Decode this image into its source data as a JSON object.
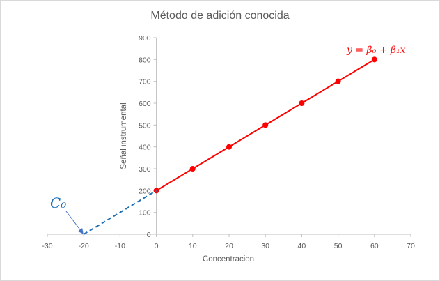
{
  "chart_data": {
    "type": "scatter",
    "title": "Método de adición conocida",
    "xlabel": "Concentracion",
    "ylabel": "Señal instrumental",
    "xlim": [
      -30,
      70
    ],
    "ylim": [
      0,
      900
    ],
    "x_ticks": [
      -30,
      -20,
      -10,
      0,
      10,
      20,
      30,
      40,
      50,
      60,
      70
    ],
    "y_ticks": [
      0,
      100,
      200,
      300,
      400,
      500,
      600,
      700,
      800,
      900
    ],
    "grid": false,
    "series": [
      {
        "color": "#ff0000",
        "markers": true,
        "line": "solid",
        "x": [
          0,
          10,
          20,
          30,
          40,
          50,
          60
        ],
        "y": [
          200,
          300,
          400,
          500,
          600,
          700,
          800
        ]
      },
      {
        "color": "#1f6fb5",
        "markers": false,
        "line": "dashed",
        "x": [
          -20,
          0
        ],
        "y": [
          0,
          200
        ]
      }
    ],
    "annotations": [
      {
        "text": "y = β₀ + β₁x",
        "color": "#ff0000"
      },
      {
        "text": "C₀",
        "color": "#1f6fb5",
        "points_to": [
          -20,
          0
        ]
      }
    ]
  }
}
